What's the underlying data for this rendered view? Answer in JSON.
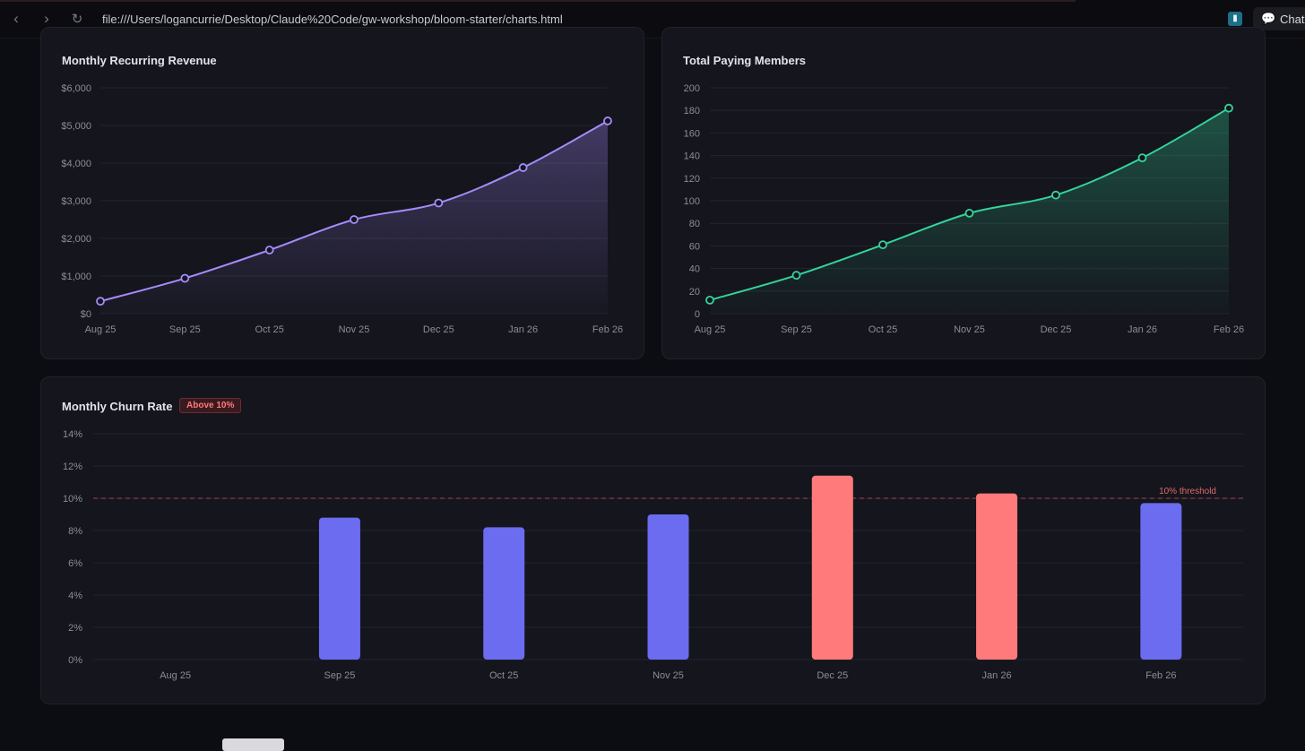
{
  "browser": {
    "url": "file:///Users/logancurrie/Desktop/Claude%20Code/gw-workshop/bloom-starter/charts.html",
    "back_icon": "‹",
    "forward_icon": "›",
    "reload_icon": "↻",
    "extension_icon": "▮",
    "chat_label": "Chat",
    "chat_icon": "💬"
  },
  "chart_data": [
    {
      "type": "area",
      "title": "Monthly Recurring Revenue",
      "categories": [
        "Aug 25",
        "Sep 25",
        "Oct 25",
        "Nov 25",
        "Dec 25",
        "Jan 26",
        "Feb 26"
      ],
      "values": [
        330,
        940,
        1690,
        2500,
        2940,
        3880,
        5120
      ],
      "ylim": [
        0,
        6000
      ],
      "yticks": [
        {
          "value": 0,
          "label": "$0"
        },
        {
          "value": 1000,
          "label": "$1,000"
        },
        {
          "value": 2000,
          "label": "$2,000"
        },
        {
          "value": 3000,
          "label": "$3,000"
        },
        {
          "value": 4000,
          "label": "$4,000"
        },
        {
          "value": 5000,
          "label": "$5,000"
        },
        {
          "value": 6000,
          "label": "$6,000"
        }
      ],
      "color": "#a78bfa"
    },
    {
      "type": "area",
      "title": "Total Paying Members",
      "categories": [
        "Aug 25",
        "Sep 25",
        "Oct 25",
        "Nov 25",
        "Dec 25",
        "Jan 26",
        "Feb 26"
      ],
      "values": [
        12,
        34,
        61,
        89,
        105,
        138,
        182
      ],
      "ylim": [
        0,
        200
      ],
      "yticks": [
        {
          "value": 0,
          "label": "0"
        },
        {
          "value": 20,
          "label": "20"
        },
        {
          "value": 40,
          "label": "40"
        },
        {
          "value": 60,
          "label": "60"
        },
        {
          "value": 80,
          "label": "80"
        },
        {
          "value": 100,
          "label": "100"
        },
        {
          "value": 120,
          "label": "120"
        },
        {
          "value": 140,
          "label": "140"
        },
        {
          "value": 160,
          "label": "160"
        },
        {
          "value": 180,
          "label": "180"
        },
        {
          "value": 200,
          "label": "200"
        }
      ],
      "color": "#34d399"
    },
    {
      "type": "bar",
      "title": "Monthly Churn Rate",
      "badge": "Above 10%",
      "categories": [
        "Aug 25",
        "Sep 25",
        "Oct 25",
        "Nov 25",
        "Dec 25",
        "Jan 26",
        "Feb 26"
      ],
      "values": [
        0,
        8.8,
        8.2,
        9.0,
        11.4,
        10.3,
        9.7
      ],
      "ylim": [
        0,
        14
      ],
      "yticks": [
        {
          "value": 0,
          "label": "0%"
        },
        {
          "value": 2,
          "label": "2%"
        },
        {
          "value": 4,
          "label": "4%"
        },
        {
          "value": 6,
          "label": "6%"
        },
        {
          "value": 8,
          "label": "8%"
        },
        {
          "value": 10,
          "label": "10%"
        },
        {
          "value": 12,
          "label": "12%"
        },
        {
          "value": 14,
          "label": "14%"
        }
      ],
      "threshold": 10,
      "threshold_label": "10% threshold",
      "normal_color": "#6b6cf0",
      "alert_color": "#ff7b7b",
      "threshold_color": "#a44550"
    }
  ]
}
